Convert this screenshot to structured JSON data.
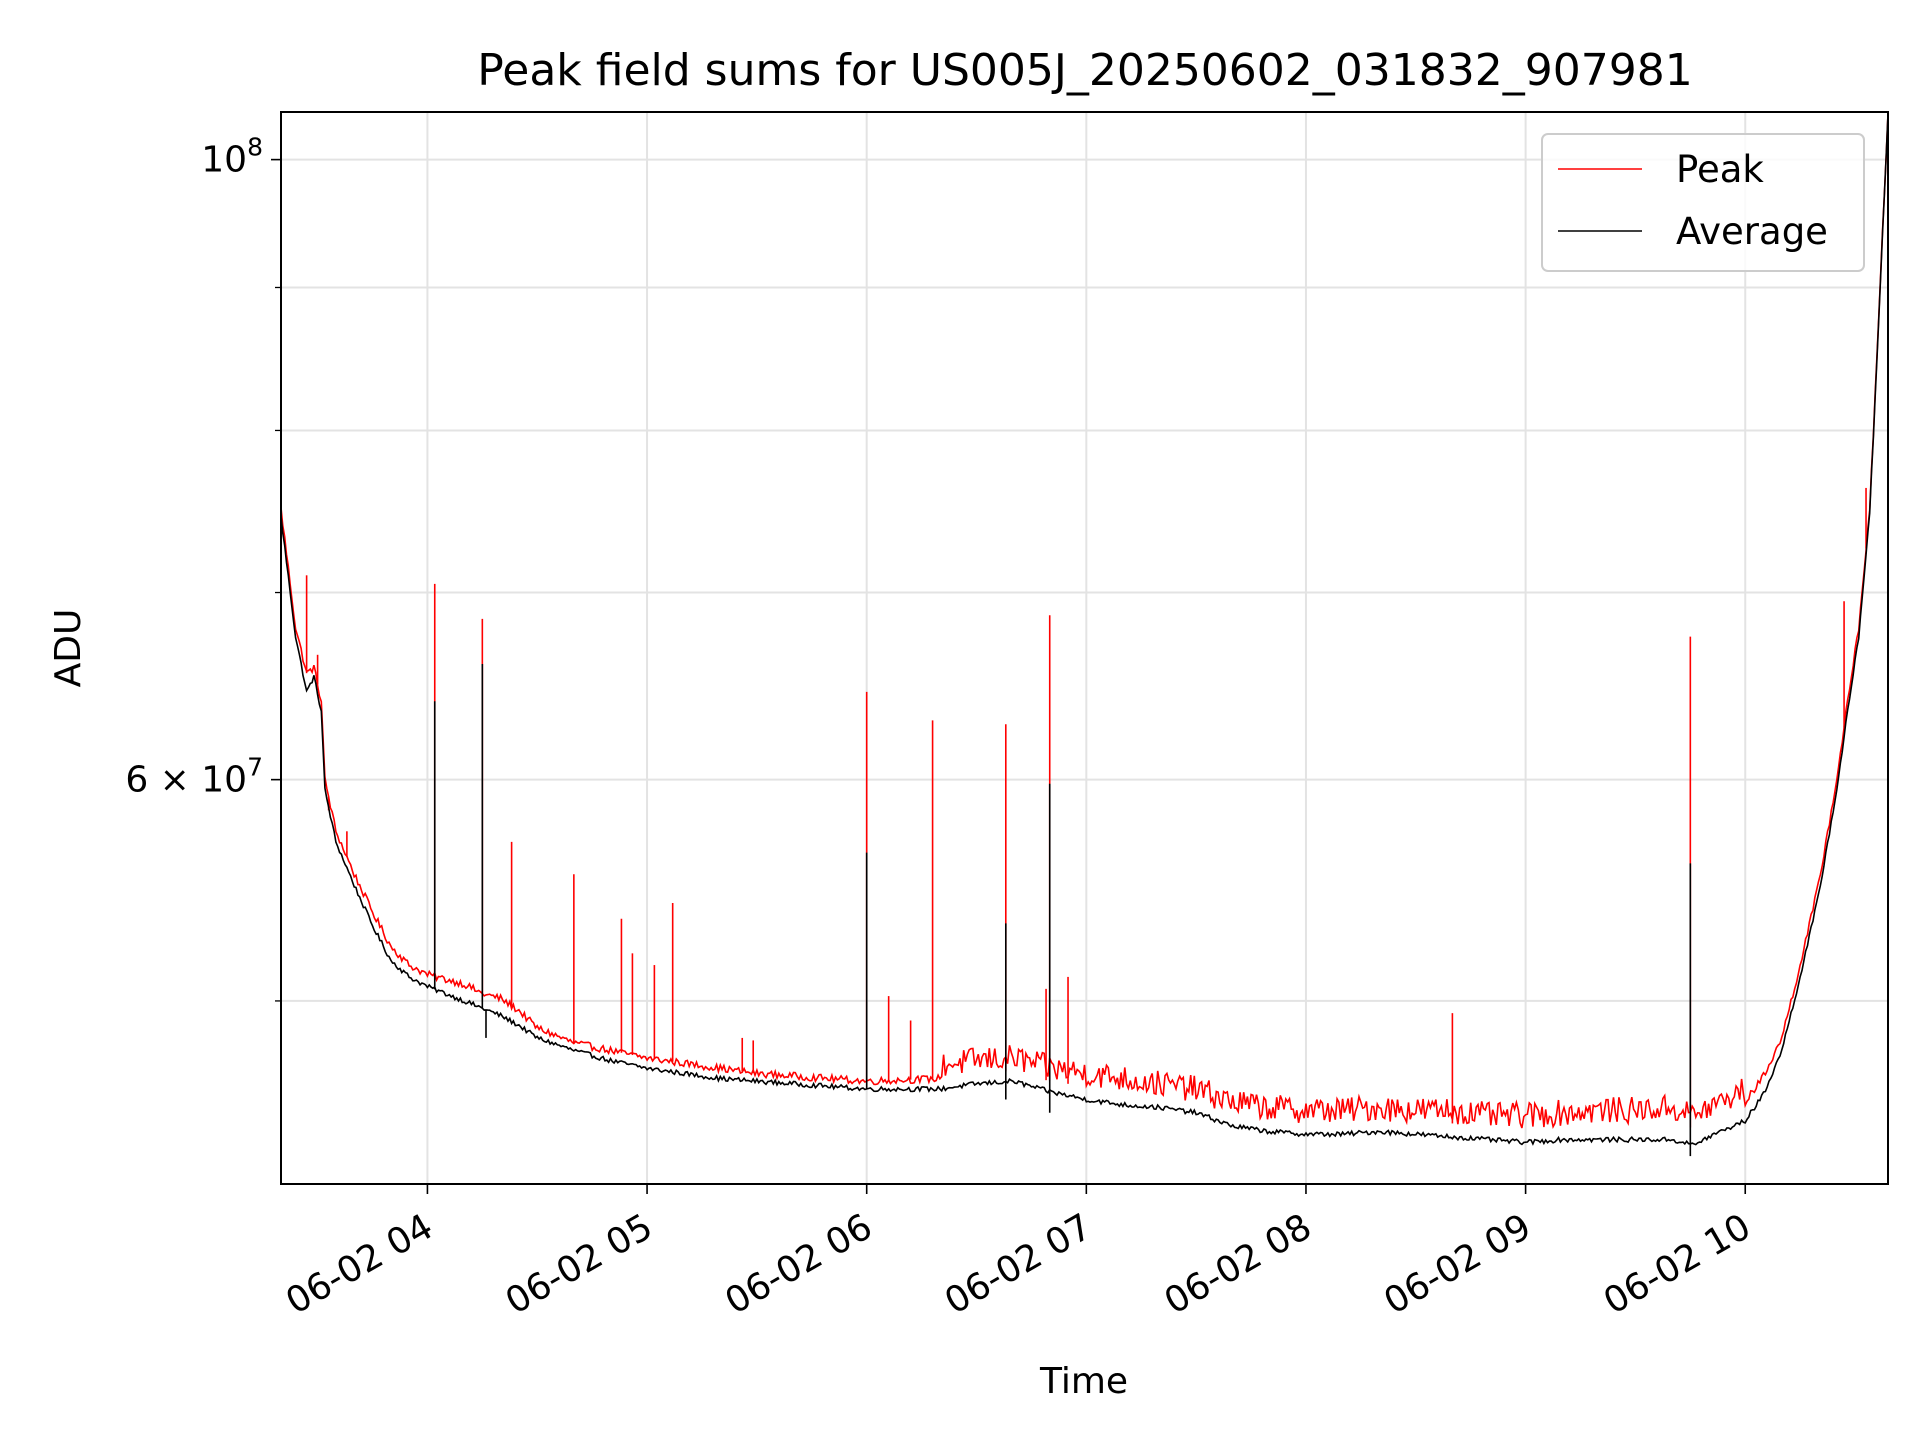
{
  "chart_data": {
    "type": "line",
    "title": "Peak field sums for US005J_20250602_031832_907981",
    "xlabel": "Time",
    "ylabel": "ADU",
    "yscale": "log",
    "x_range": [
      "2025-06-02 03:20",
      "2025-06-02 10:39"
    ],
    "ylim": [
      43000000,
      104000000
    ],
    "grid": true,
    "legend_position": "upper right",
    "x_ticks": [
      {
        "value": "2025-06-02 04:00",
        "label": "06-02 04"
      },
      {
        "value": "2025-06-02 05:00",
        "label": "06-02 05"
      },
      {
        "value": "2025-06-02 06:00",
        "label": "06-02 06"
      },
      {
        "value": "2025-06-02 07:00",
        "label": "06-02 07"
      },
      {
        "value": "2025-06-02 08:00",
        "label": "06-02 08"
      },
      {
        "value": "2025-06-02 09:00",
        "label": "06-02 09"
      },
      {
        "value": "2025-06-02 10:00",
        "label": "06-02 10"
      }
    ],
    "y_major_ticks": [
      {
        "value": 100000000,
        "base": "10",
        "exp": "8"
      },
      {
        "value": 60000000,
        "mant": "6",
        "base": "10",
        "exp": "7"
      }
    ],
    "y_minor_ticks": [
      50000000,
      70000000,
      80000000,
      90000000
    ],
    "series": [
      {
        "name": "Peak",
        "color": "#ff0000",
        "points": [
          [
            "03:20",
            75000000
          ],
          [
            "03:24",
            68000000
          ],
          [
            "03:27",
            65500000
          ],
          [
            "03:29",
            65800000
          ],
          [
            "03:31",
            64000000
          ],
          [
            "03:32",
            60000000
          ],
          [
            "03:35",
            57500000
          ],
          [
            "03:40",
            55500000
          ],
          [
            "03:45",
            53800000
          ],
          [
            "03:50",
            52300000
          ],
          [
            "03:55",
            51500000
          ],
          [
            "04:00",
            51100000
          ],
          [
            "04:05",
            50900000
          ],
          [
            "04:10",
            50700000
          ],
          [
            "04:15",
            50300000
          ],
          [
            "04:20",
            50100000
          ],
          [
            "04:25",
            49600000
          ],
          [
            "04:30",
            48900000
          ],
          [
            "04:40",
            48300000
          ],
          [
            "04:50",
            48000000
          ],
          [
            "05:00",
            47700000
          ],
          [
            "05:10",
            47500000
          ],
          [
            "05:20",
            47300000
          ],
          [
            "05:30",
            47100000
          ],
          [
            "05:40",
            47000000
          ],
          [
            "05:50",
            46900000
          ],
          [
            "06:00",
            46800000
          ],
          [
            "06:10",
            46850000
          ],
          [
            "06:20",
            46900000
          ],
          [
            "06:30",
            47100000
          ],
          [
            "06:40",
            47200000
          ],
          [
            "06:50",
            46800000
          ],
          [
            "07:00",
            46600000
          ],
          [
            "07:10",
            46400000
          ],
          [
            "07:20",
            46200000
          ],
          [
            "07:30",
            46000000
          ],
          [
            "07:40",
            45500000
          ],
          [
            "07:50",
            45300000
          ],
          [
            "08:00",
            45200000
          ],
          [
            "08:10",
            45200000
          ],
          [
            "08:20",
            45300000
          ],
          [
            "08:30",
            45200000
          ],
          [
            "08:40",
            45200000
          ],
          [
            "08:50",
            45000000
          ],
          [
            "09:00",
            45000000
          ],
          [
            "09:10",
            45100000
          ],
          [
            "09:20",
            45200000
          ],
          [
            "09:30",
            45200000
          ],
          [
            "09:40",
            45300000
          ],
          [
            "09:46",
            45000000
          ],
          [
            "09:50",
            45300000
          ],
          [
            "09:55",
            45600000
          ],
          [
            "10:00",
            46000000
          ],
          [
            "10:05",
            47000000
          ],
          [
            "10:10",
            48500000
          ],
          [
            "10:15",
            51500000
          ],
          [
            "10:20",
            55000000
          ],
          [
            "10:25",
            60000000
          ],
          [
            "10:28",
            64000000
          ],
          [
            "10:31",
            68000000
          ],
          [
            "10:34",
            75000000
          ],
          [
            "10:36",
            85000000
          ],
          [
            "10:39",
            104000000
          ]
        ],
        "spikes": [
          [
            "03:27",
            71000000
          ],
          [
            "03:30",
            66500000
          ],
          [
            "03:33",
            58500000
          ],
          [
            "03:38",
            57500000
          ],
          [
            "04:02",
            70500000
          ],
          [
            "04:15",
            68500000
          ],
          [
            "04:23",
            57000000
          ],
          [
            "04:40",
            55500000
          ],
          [
            "04:53",
            53500000
          ],
          [
            "04:56",
            52000000
          ],
          [
            "05:02",
            51500000
          ],
          [
            "05:07",
            54200000
          ],
          [
            "05:26",
            48500000
          ],
          [
            "05:29",
            48400000
          ],
          [
            "06:00",
            64500000
          ],
          [
            "06:06",
            50200000
          ],
          [
            "06:12",
            49200000
          ],
          [
            "06:18",
            63000000
          ],
          [
            "06:38",
            62800000
          ],
          [
            "06:49",
            50500000
          ],
          [
            "06:50",
            68700000
          ],
          [
            "06:55",
            51000000
          ],
          [
            "08:40",
            49500000
          ],
          [
            "09:45",
            67500000
          ],
          [
            "10:27",
            69500000
          ],
          [
            "10:33",
            76300000
          ]
        ]
      },
      {
        "name": "Average",
        "color": "#000000",
        "points": [
          [
            "03:20",
            74500000
          ],
          [
            "03:24",
            67500000
          ],
          [
            "03:27",
            64500000
          ],
          [
            "03:29",
            65300000
          ],
          [
            "03:31",
            63500000
          ],
          [
            "03:32",
            59500000
          ],
          [
            "03:35",
            57000000
          ],
          [
            "03:40",
            55000000
          ],
          [
            "03:45",
            53200000
          ],
          [
            "03:50",
            51700000
          ],
          [
            "03:55",
            51000000
          ],
          [
            "04:00",
            50600000
          ],
          [
            "04:05",
            50300000
          ],
          [
            "04:10",
            50000000
          ],
          [
            "04:15",
            49700000
          ],
          [
            "04:20",
            49400000
          ],
          [
            "04:25",
            49000000
          ],
          [
            "04:30",
            48500000
          ],
          [
            "04:40",
            48000000
          ],
          [
            "04:50",
            47600000
          ],
          [
            "05:00",
            47300000
          ],
          [
            "05:10",
            47100000
          ],
          [
            "05:20",
            46900000
          ],
          [
            "05:30",
            46800000
          ],
          [
            "05:40",
            46700000
          ],
          [
            "05:50",
            46600000
          ],
          [
            "06:00",
            46500000
          ],
          [
            "06:10",
            46500000
          ],
          [
            "06:20",
            46500000
          ],
          [
            "06:30",
            46700000
          ],
          [
            "06:40",
            46800000
          ],
          [
            "06:50",
            46400000
          ],
          [
            "07:00",
            46100000
          ],
          [
            "07:10",
            45900000
          ],
          [
            "07:20",
            45800000
          ],
          [
            "07:30",
            45600000
          ],
          [
            "07:40",
            45100000
          ],
          [
            "07:50",
            44900000
          ],
          [
            "08:00",
            44800000
          ],
          [
            "08:10",
            44800000
          ],
          [
            "08:20",
            44900000
          ],
          [
            "08:30",
            44800000
          ],
          [
            "08:40",
            44700000
          ],
          [
            "08:50",
            44600000
          ],
          [
            "09:00",
            44500000
          ],
          [
            "09:10",
            44600000
          ],
          [
            "09:20",
            44600000
          ],
          [
            "09:30",
            44600000
          ],
          [
            "09:40",
            44600000
          ],
          [
            "09:46",
            44400000
          ],
          [
            "09:50",
            44700000
          ],
          [
            "09:55",
            45000000
          ],
          [
            "10:00",
            45300000
          ],
          [
            "10:05",
            46300000
          ],
          [
            "10:10",
            48000000
          ],
          [
            "10:15",
            51000000
          ],
          [
            "10:20",
            54500000
          ],
          [
            "10:25",
            59500000
          ],
          [
            "10:28",
            63500000
          ],
          [
            "10:31",
            67500000
          ],
          [
            "10:34",
            74800000
          ],
          [
            "10:36",
            84800000
          ],
          [
            "10:39",
            104000000
          ]
        ],
        "spikes": [
          [
            "04:02",
            64000000
          ],
          [
            "04:15",
            66000000
          ],
          [
            "04:16",
            48500000
          ],
          [
            "06:00",
            56500000
          ],
          [
            "06:38",
            53300000
          ],
          [
            "06:38",
            46100000
          ],
          [
            "06:50",
            59800000
          ],
          [
            "06:50",
            45600000
          ],
          [
            "09:45",
            56000000
          ],
          [
            "09:45",
            44000000
          ],
          [
            "10:33",
            72300000
          ]
        ]
      }
    ]
  }
}
